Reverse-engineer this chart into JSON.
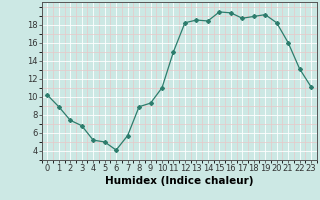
{
  "x": [
    0,
    1,
    2,
    3,
    4,
    5,
    6,
    7,
    8,
    9,
    10,
    11,
    12,
    13,
    14,
    15,
    16,
    17,
    18,
    19,
    20,
    21,
    22,
    23
  ],
  "y": [
    10.2,
    8.9,
    7.4,
    6.8,
    5.2,
    5.0,
    4.1,
    5.7,
    8.9,
    9.3,
    11.0,
    15.0,
    18.2,
    18.5,
    18.4,
    19.4,
    19.3,
    18.7,
    18.9,
    19.1,
    18.2,
    16.0,
    13.1,
    11.1
  ],
  "line_color": "#2d7d6d",
  "bg_color": "#cce8e4",
  "grid_major_color": "#ffffff",
  "grid_minor_color": "#e8c8c8",
  "xlabel": "Humidex (Indice chaleur)",
  "xlim": [
    -0.5,
    23.5
  ],
  "ylim": [
    3.0,
    20.5
  ],
  "yticks": [
    4,
    6,
    8,
    10,
    12,
    14,
    16,
    18
  ],
  "xticks": [
    0,
    1,
    2,
    3,
    4,
    5,
    6,
    7,
    8,
    9,
    10,
    11,
    12,
    13,
    14,
    15,
    16,
    17,
    18,
    19,
    20,
    21,
    22,
    23
  ],
  "tick_fontsize": 6,
  "xlabel_fontsize": 7.5,
  "marker": "D",
  "marker_size": 2.0,
  "line_width": 0.9,
  "spine_color": "#555555",
  "tick_color": "#333333"
}
